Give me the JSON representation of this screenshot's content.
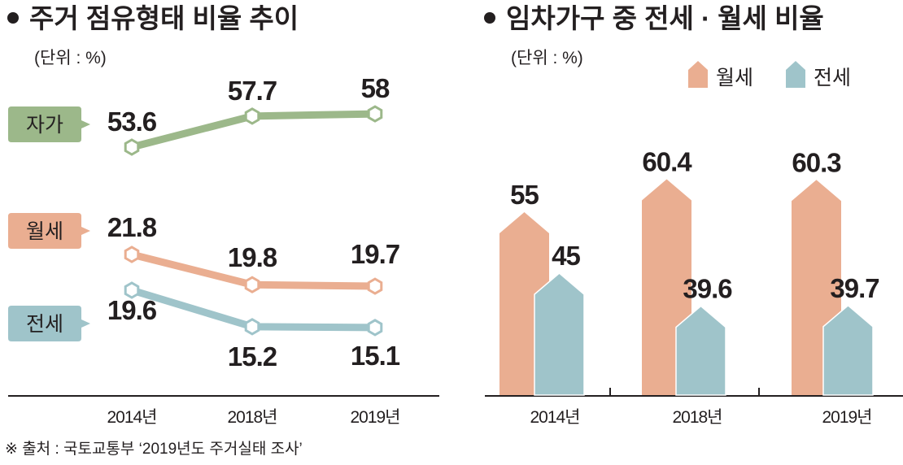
{
  "chart_data": [
    {
      "type": "line",
      "title": "주거 점유형태 비율 추이",
      "unit_label": "(단위 : %)",
      "categories": [
        "2014년",
        "2018년",
        "2019년"
      ],
      "series": [
        {
          "name": "자가",
          "values": [
            53.6,
            57.7,
            58
          ],
          "labels": [
            "53.6",
            "57.7",
            "58"
          ],
          "color": "#9cb88a"
        },
        {
          "name": "월세",
          "values": [
            21.8,
            19.8,
            19.7
          ],
          "labels": [
            "21.8",
            "19.8",
            "19.7"
          ],
          "color": "#eaae91"
        },
        {
          "name": "전세",
          "values": [
            19.6,
            15.2,
            15.1
          ],
          "labels": [
            "19.6",
            "15.2",
            "15.1"
          ],
          "color": "#9fc4ca"
        }
      ],
      "source": "※ 출처 : 국토교통부 ‘2019년도 주거실태 조사’"
    },
    {
      "type": "bar",
      "title": "임차가구 중 전세 · 월세 비율",
      "unit_label": "(단위 : %)",
      "categories": [
        "2014년",
        "2018년",
        "2019년"
      ],
      "legend_position": "top-right",
      "series": [
        {
          "name": "월세",
          "values": [
            55,
            60.4,
            60.3
          ],
          "labels": [
            "55",
            "60.4",
            "60.3"
          ],
          "color": "#eaae91"
        },
        {
          "name": "전세",
          "values": [
            45,
            39.6,
            39.7
          ],
          "labels": [
            "45",
            "39.6",
            "39.7"
          ],
          "color": "#9fc4ca"
        }
      ]
    }
  ]
}
